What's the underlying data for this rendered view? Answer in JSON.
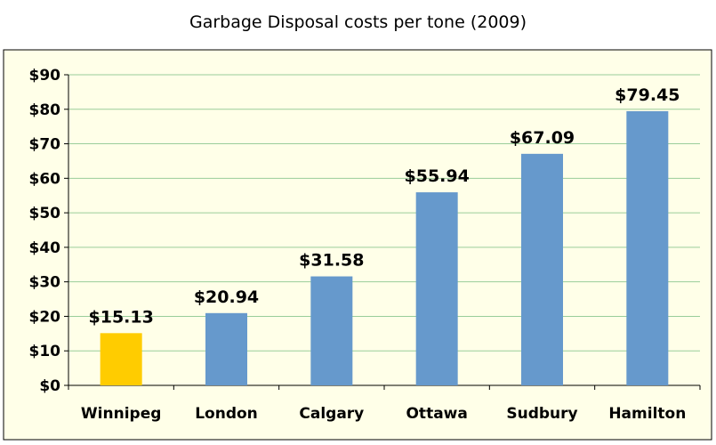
{
  "chart_data": {
    "type": "bar",
    "title": "Garbage Disposal costs per tone (2009)",
    "xlabel": "",
    "ylabel": "",
    "categories": [
      "Winnipeg",
      "London",
      "Calgary",
      "Ottawa",
      "Sudbury",
      "Hamilton"
    ],
    "values": [
      15.13,
      20.94,
      31.58,
      55.94,
      67.09,
      79.45
    ],
    "data_labels": [
      "$15.13",
      "$20.94",
      "$31.58",
      "$55.94",
      "$67.09",
      "$79.45"
    ],
    "ylim": [
      0,
      90
    ],
    "yticks": [
      0,
      10,
      20,
      30,
      40,
      50,
      60,
      70,
      80,
      90
    ],
    "ytick_labels": [
      "$0",
      "$10",
      "$20",
      "$30",
      "$40",
      "$50",
      "$60",
      "$70",
      "$80",
      "$90"
    ],
    "grid": true,
    "legend": "none",
    "colors": {
      "highlight": "#FFCC00",
      "default_bar": "#6699CC",
      "plot_background": "#FFFFE8",
      "gridline": "#9ACD9A",
      "axis": "#000000"
    },
    "highlight_index": 0
  }
}
